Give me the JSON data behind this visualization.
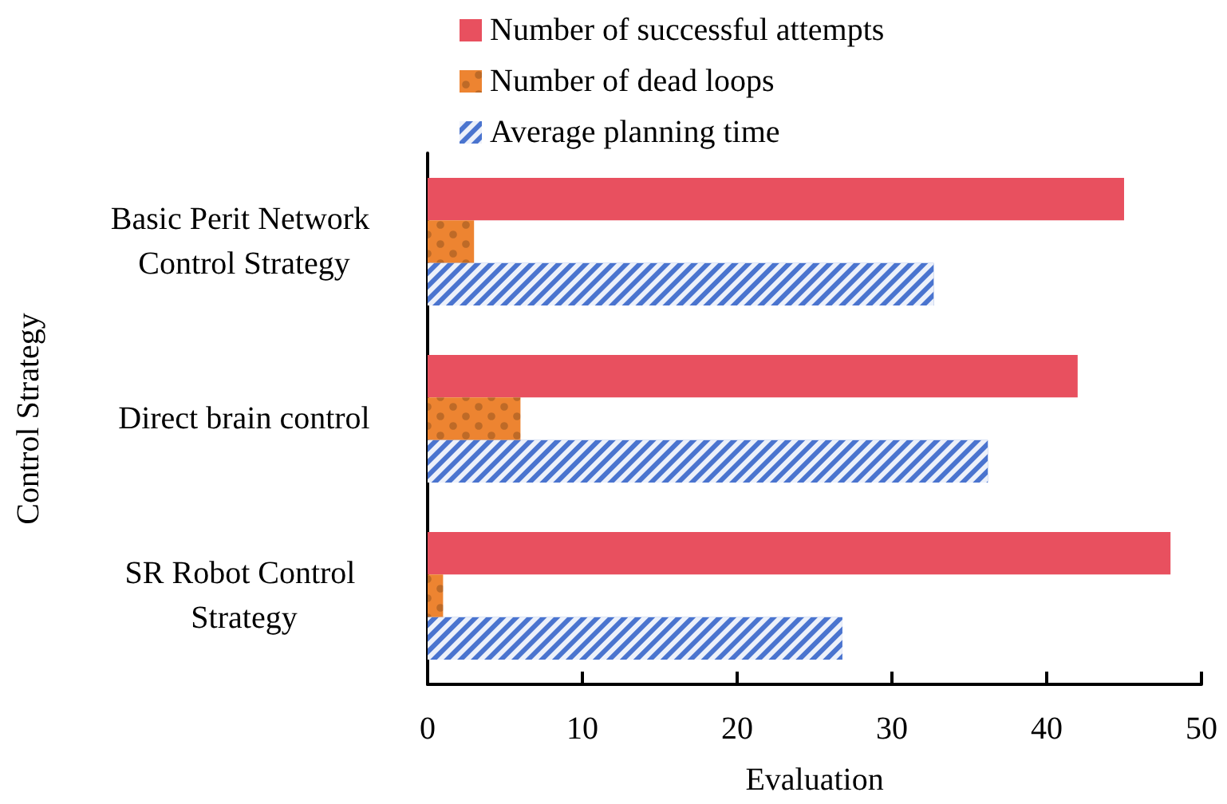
{
  "chart_data": {
    "type": "bar",
    "orientation": "horizontal",
    "xlabel": "Evaluation",
    "ylabel": "Control Strategy",
    "categories": [
      "Basic Perit Network Control Strategy",
      "Direct brain control",
      "SR Robot Control Strategy"
    ],
    "series": [
      {
        "name": "Number of successful attempts",
        "color": "#e8505f",
        "values": [
          45,
          42,
          48
        ]
      },
      {
        "name": "Number of dead loops",
        "color": "#ed8431",
        "values": [
          3,
          6,
          1
        ]
      },
      {
        "name": "Average planning time",
        "color": "#4a74cf",
        "values": [
          32.7,
          36.2,
          26.8
        ]
      }
    ],
    "xlim": [
      0,
      50
    ],
    "xticks": [
      0,
      10,
      20,
      30,
      40,
      50
    ],
    "legend": "top",
    "grid": false
  }
}
